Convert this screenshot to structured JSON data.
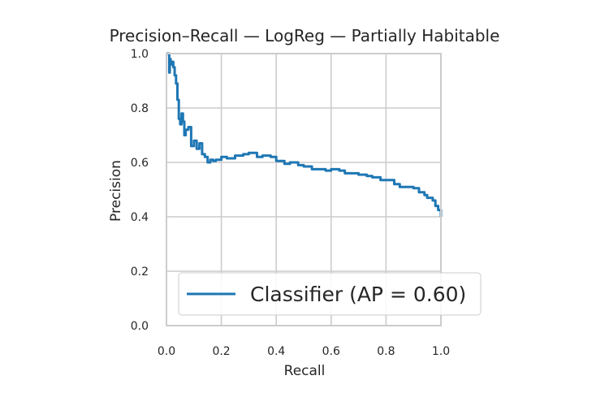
{
  "chart_data": {
    "type": "line",
    "title": "Precision–Recall — LogReg — Partially Habitable",
    "xlabel": "Recall",
    "ylabel": "Precision",
    "xlim": [
      0.0,
      1.0
    ],
    "ylim": [
      0.0,
      1.0
    ],
    "x_ticks": [
      "0.0",
      "0.2",
      "0.4",
      "0.6",
      "0.8",
      "1.0"
    ],
    "y_ticks": [
      "0.0",
      "0.2",
      "0.4",
      "0.6",
      "0.8",
      "1.0"
    ],
    "grid": true,
    "legend_position": "lower-right",
    "series": [
      {
        "name": "Classifier (AP = 0.60)",
        "color": "#1f77b4",
        "x": [
          0.0,
          0.005,
          0.01,
          0.012,
          0.015,
          0.02,
          0.025,
          0.03,
          0.035,
          0.04,
          0.045,
          0.05,
          0.055,
          0.06,
          0.065,
          0.07,
          0.08,
          0.09,
          0.1,
          0.11,
          0.12,
          0.13,
          0.14,
          0.15,
          0.16,
          0.17,
          0.18,
          0.2,
          0.22,
          0.25,
          0.28,
          0.3,
          0.33,
          0.35,
          0.38,
          0.4,
          0.43,
          0.45,
          0.48,
          0.5,
          0.53,
          0.55,
          0.58,
          0.6,
          0.63,
          0.65,
          0.68,
          0.7,
          0.73,
          0.75,
          0.78,
          0.8,
          0.83,
          0.85,
          0.88,
          0.9,
          0.92,
          0.94,
          0.95,
          0.97,
          0.98,
          0.99,
          1.0
        ],
        "y": [
          1.0,
          1.0,
          0.93,
          0.98,
          0.96,
          0.97,
          0.95,
          0.92,
          0.89,
          0.83,
          0.76,
          0.74,
          0.78,
          0.75,
          0.7,
          0.72,
          0.73,
          0.66,
          0.68,
          0.65,
          0.67,
          0.63,
          0.62,
          0.6,
          0.61,
          0.605,
          0.61,
          0.62,
          0.615,
          0.625,
          0.63,
          0.635,
          0.62,
          0.625,
          0.62,
          0.605,
          0.595,
          0.6,
          0.59,
          0.585,
          0.575,
          0.575,
          0.57,
          0.575,
          0.57,
          0.56,
          0.56,
          0.555,
          0.55,
          0.545,
          0.535,
          0.535,
          0.52,
          0.51,
          0.51,
          0.505,
          0.49,
          0.48,
          0.47,
          0.46,
          0.44,
          0.425,
          0.4
        ]
      }
    ]
  }
}
